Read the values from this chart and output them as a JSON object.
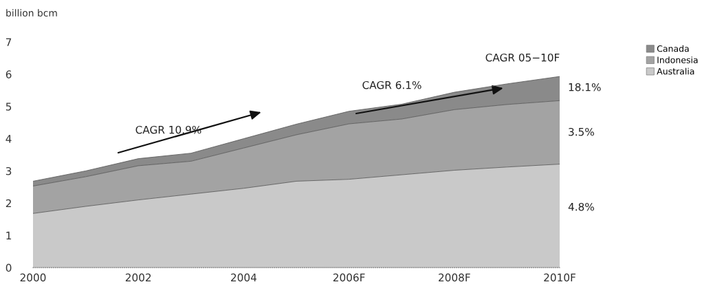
{
  "chart_data": {
    "type": "area",
    "stacked": true,
    "ylabel": "billion bcm",
    "x": [
      2000,
      2001,
      2002,
      2003,
      2004,
      2005,
      2006,
      2007,
      2008,
      2009,
      2010
    ],
    "xlim": [
      2000,
      2010
    ],
    "xticks": [
      2000,
      2002,
      2004,
      {
        "value": 2006,
        "label": "2006F"
      },
      {
        "value": 2008,
        "label": "2008F"
      },
      {
        "value": 2010,
        "label": "2010F"
      }
    ],
    "ylim": [
      0,
      7
    ],
    "yticks": [
      0,
      1,
      2,
      3,
      4,
      5,
      6,
      7
    ],
    "series": [
      {
        "name": "Australia",
        "color": "#c9c9c9",
        "values": [
          1.68,
          1.9,
          2.1,
          2.28,
          2.46,
          2.68,
          2.74,
          2.88,
          3.02,
          3.12,
          3.21
        ]
      },
      {
        "name": "Indonesia",
        "color": "#a3a3a3",
        "values": [
          0.85,
          0.92,
          1.06,
          1.02,
          1.25,
          1.44,
          1.72,
          1.73,
          1.88,
          1.94,
          1.97
        ]
      },
      {
        "name": "Canada",
        "color": "#8a8a8a",
        "values": [
          0.15,
          0.18,
          0.22,
          0.25,
          0.29,
          0.33,
          0.39,
          0.46,
          0.54,
          0.64,
          0.75
        ]
      }
    ],
    "annotations": [
      "CAGR 10.9%",
      "CAGR 6.1%",
      "CAGR 05−10F",
      "18.1%",
      "3.5%",
      "4.8%"
    ],
    "legend": "top right",
    "grid": false
  }
}
